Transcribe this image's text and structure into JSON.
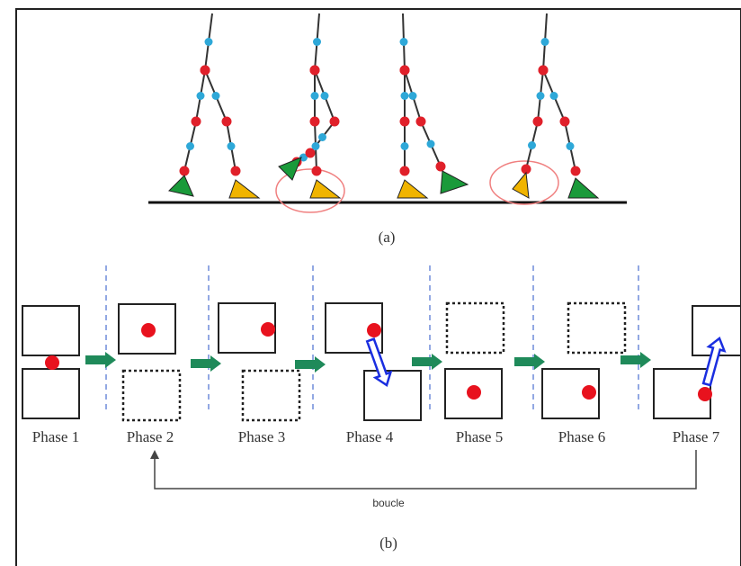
{
  "figure_a": {
    "label": "(a)"
  },
  "figure_b": {
    "label": "(b)",
    "phases": [
      "Phase 1",
      "Phase 2",
      "Phase 3",
      "Phase 4",
      "Phase 5",
      "Phase 6",
      "Phase 7"
    ],
    "loop_label": "boucle"
  }
}
